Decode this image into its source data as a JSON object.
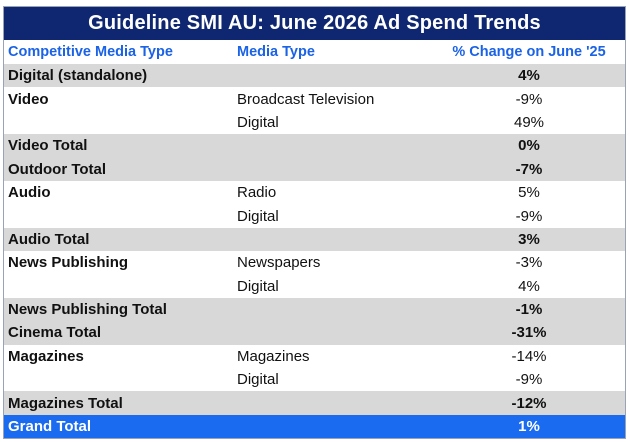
{
  "title": "Guideline SMI AU: June 2026 Ad Spend Trends",
  "headers": {
    "competitive_media_type": "Competitive Media Type",
    "media_type": "Media Type",
    "change": "% Change on June '25"
  },
  "rows": [
    {
      "kind": "total",
      "competitive": "Digital (standalone)",
      "media": "",
      "change": "4%"
    },
    {
      "kind": "group",
      "competitive": "Video",
      "media": "Broadcast Television",
      "change": "-9%"
    },
    {
      "kind": "group",
      "competitive": "",
      "media": "Digital",
      "change": "49%"
    },
    {
      "kind": "total",
      "competitive": "Video Total",
      "media": "",
      "change": "0%"
    },
    {
      "kind": "total",
      "competitive": "Outdoor Total",
      "media": "",
      "change": "-7%"
    },
    {
      "kind": "group",
      "competitive": "Audio",
      "media": "Radio",
      "change": "5%"
    },
    {
      "kind": "group",
      "competitive": "",
      "media": "Digital",
      "change": "-9%"
    },
    {
      "kind": "total",
      "competitive": "Audio Total",
      "media": "",
      "change": "3%"
    },
    {
      "kind": "group",
      "competitive": "News Publishing",
      "media": "Newspapers",
      "change": "-3%"
    },
    {
      "kind": "group",
      "competitive": "",
      "media": "Digital",
      "change": "4%"
    },
    {
      "kind": "total",
      "competitive": "News Publishing Total",
      "media": "",
      "change": "-1%"
    },
    {
      "kind": "total",
      "competitive": "Cinema Total",
      "media": "",
      "change": "-31%"
    },
    {
      "kind": "group",
      "competitive": "Magazines",
      "media": "Magazines",
      "change": "-14%"
    },
    {
      "kind": "group",
      "competitive": "",
      "media": "Digital",
      "change": "-9%"
    },
    {
      "kind": "total",
      "competitive": "Magazines Total",
      "media": "",
      "change": "-12%"
    },
    {
      "kind": "grand",
      "competitive": "Grand Total",
      "media": "",
      "change": "1%"
    }
  ],
  "colors": {
    "title_bg": "#0e2770",
    "header_text": "#1a62e6",
    "total_row_bg": "#d8d8d8",
    "grand_total_bg": "#1a6bf0"
  }
}
